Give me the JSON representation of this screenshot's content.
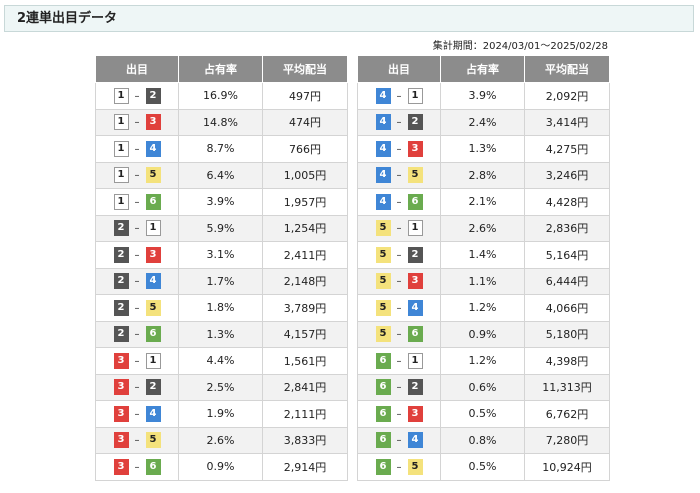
{
  "header": {
    "title": "2連単出目データ",
    "period": "集計期間：2024/03/01～2025/02/28"
  },
  "separator": "–",
  "tables": [
    {
      "header": [
        "出目",
        "占有率",
        "平均配当"
      ],
      "rows": [
        [
          "1",
          "2",
          "16.9%",
          "497円"
        ],
        [
          "1",
          "3",
          "14.8%",
          "474円"
        ],
        [
          "1",
          "4",
          "8.7%",
          "766円"
        ],
        [
          "1",
          "5",
          "6.4%",
          "1,005円"
        ],
        [
          "1",
          "6",
          "3.9%",
          "1,957円"
        ],
        [
          "2",
          "1",
          "5.9%",
          "1,254円"
        ],
        [
          "2",
          "3",
          "3.1%",
          "2,411円"
        ],
        [
          "2",
          "4",
          "1.7%",
          "2,148円"
        ],
        [
          "2",
          "5",
          "1.8%",
          "3,789円"
        ],
        [
          "2",
          "6",
          "1.3%",
          "4,157円"
        ],
        [
          "3",
          "1",
          "4.4%",
          "1,561円"
        ],
        [
          "3",
          "2",
          "2.5%",
          "2,841円"
        ],
        [
          "3",
          "4",
          "1.9%",
          "2,111円"
        ],
        [
          "3",
          "5",
          "2.6%",
          "3,833円"
        ],
        [
          "3",
          "6",
          "0.9%",
          "2,914円"
        ]
      ]
    },
    {
      "header": [
        "出目",
        "占有率",
        "平均配当"
      ],
      "rows": [
        [
          "4",
          "1",
          "3.9%",
          "2,092円"
        ],
        [
          "4",
          "2",
          "2.4%",
          "3,414円"
        ],
        [
          "4",
          "3",
          "1.3%",
          "4,275円"
        ],
        [
          "4",
          "5",
          "2.8%",
          "3,246円"
        ],
        [
          "4",
          "6",
          "2.1%",
          "4,428円"
        ],
        [
          "5",
          "1",
          "2.6%",
          "2,836円"
        ],
        [
          "5",
          "2",
          "1.4%",
          "5,164円"
        ],
        [
          "5",
          "3",
          "1.1%",
          "6,444円"
        ],
        [
          "5",
          "4",
          "1.2%",
          "4,066円"
        ],
        [
          "5",
          "6",
          "0.9%",
          "5,180円"
        ],
        [
          "6",
          "1",
          "1.2%",
          "4,398円"
        ],
        [
          "6",
          "2",
          "0.6%",
          "11,313円"
        ],
        [
          "6",
          "3",
          "0.5%",
          "6,762円"
        ],
        [
          "6",
          "4",
          "0.8%",
          "7,280円"
        ],
        [
          "6",
          "5",
          "0.5%",
          "10,924円"
        ]
      ]
    }
  ]
}
